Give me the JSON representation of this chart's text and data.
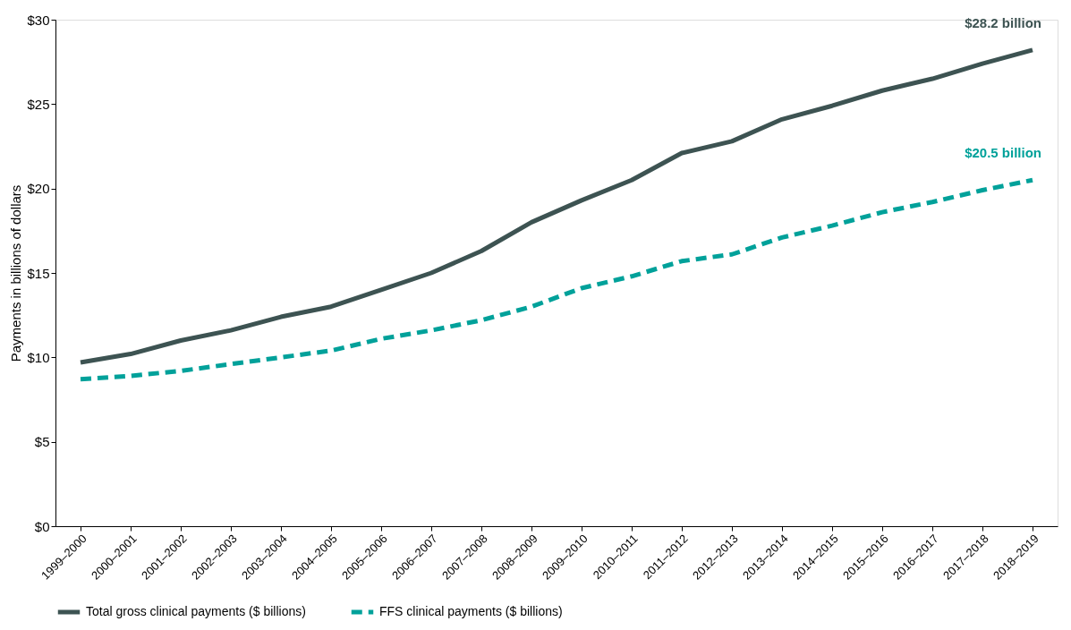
{
  "chart_data": {
    "type": "line",
    "categories": [
      "1999–2000",
      "2000–2001",
      "2001–2002",
      "2002–2003",
      "2003–2004",
      "2004–2005",
      "2005–2006",
      "2006–2007",
      "2007–2008",
      "2008–2009",
      "2009–2010",
      "2010–2011",
      "2011–2012",
      "2012–2013",
      "2013–2014",
      "2014–2015",
      "2015–2016",
      "2016–2017",
      "2017–2018",
      "2018–2019"
    ],
    "ylabel": "Payments in billions of dollars",
    "ylim": [
      0,
      30
    ],
    "yticks": [
      {
        "value": 0,
        "label": "$0"
      },
      {
        "value": 5,
        "label": "$5"
      },
      {
        "value": 10,
        "label": "$10"
      },
      {
        "value": 15,
        "label": "$15"
      },
      {
        "value": 20,
        "label": "$20"
      },
      {
        "value": 25,
        "label": "$25"
      },
      {
        "value": 30,
        "label": "$30"
      }
    ],
    "series": [
      {
        "name": "Total gross clinical payments ($ billions)",
        "color": "#3d5352",
        "line_style": "solid",
        "values": [
          9.7,
          10.2,
          11.0,
          11.6,
          12.4,
          13.0,
          14.0,
          15.0,
          16.3,
          18.0,
          19.3,
          20.5,
          22.1,
          22.8,
          24.1,
          24.9,
          25.8,
          26.5,
          27.4,
          28.2
        ]
      },
      {
        "name": "FFS clinical payments ($ billions)",
        "color": "#00a19a",
        "line_style": "dashed",
        "values": [
          8.7,
          8.9,
          9.2,
          9.6,
          10.0,
          10.4,
          11.1,
          11.6,
          12.2,
          13.0,
          14.1,
          14.8,
          15.7,
          16.1,
          17.1,
          17.8,
          18.6,
          19.2,
          19.9,
          20.5
        ]
      }
    ],
    "annotations": [
      {
        "text": "$28.2 billion",
        "x": "2018–2019",
        "y": 28.2
      },
      {
        "text": "$20.5 billion",
        "x": "2018–2019",
        "y": 20.5
      }
    ],
    "grid": false,
    "legend": "bottom",
    "marker": "none"
  }
}
